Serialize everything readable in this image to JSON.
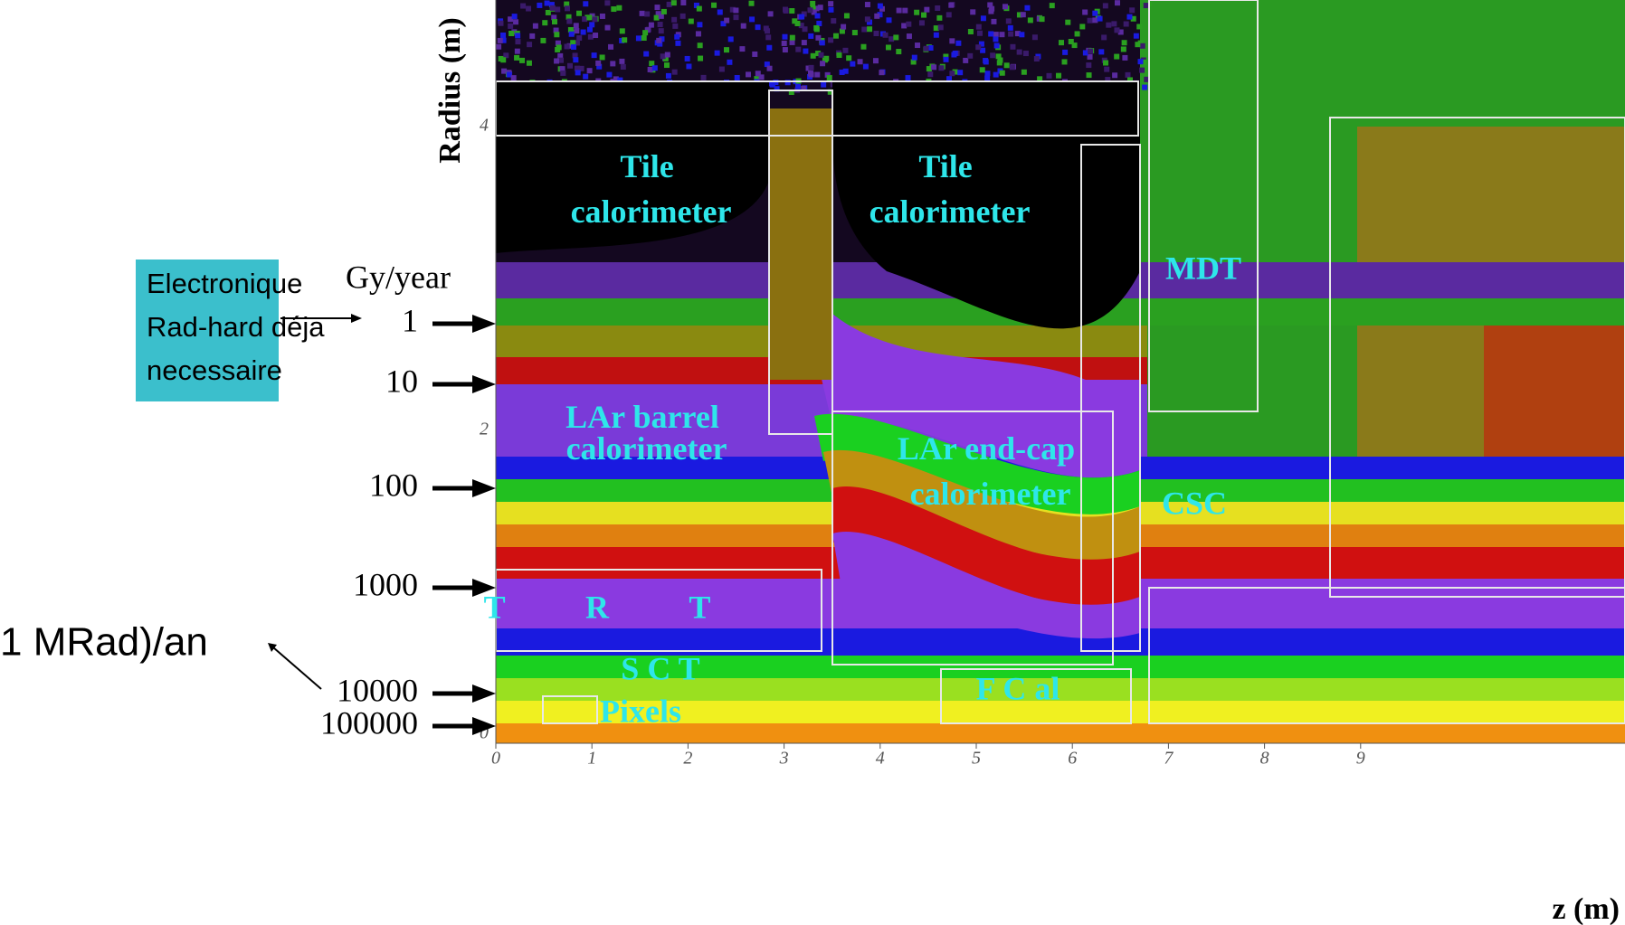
{
  "header": {
    "y_axis_label": "Radius (m)",
    "x_axis_label": "z (m)"
  },
  "axes": {
    "x_ticks": [
      "0",
      "1",
      "2",
      "3",
      "4",
      "5",
      "6",
      "7",
      "8",
      "9"
    ],
    "y_ticks": [
      "0",
      "2",
      "4"
    ]
  },
  "dose_scale": {
    "unit": "Gy/year",
    "levels": [
      "1",
      "10",
      "100",
      "1000",
      "10000",
      "100000"
    ]
  },
  "regions": [
    "Tile calorimeter",
    "Tile calorimeter",
    "LAr barrel calorimeter",
    "LAr end-cap calorimeter",
    "MDT",
    "CSC",
    "T R T",
    "S C T",
    "Pixels",
    "F C al"
  ],
  "callouts": {
    "box": [
      "Electronique",
      "Rad-hard déja",
      "necessaire"
    ],
    "mrad": "1 MRad)/an"
  }
}
